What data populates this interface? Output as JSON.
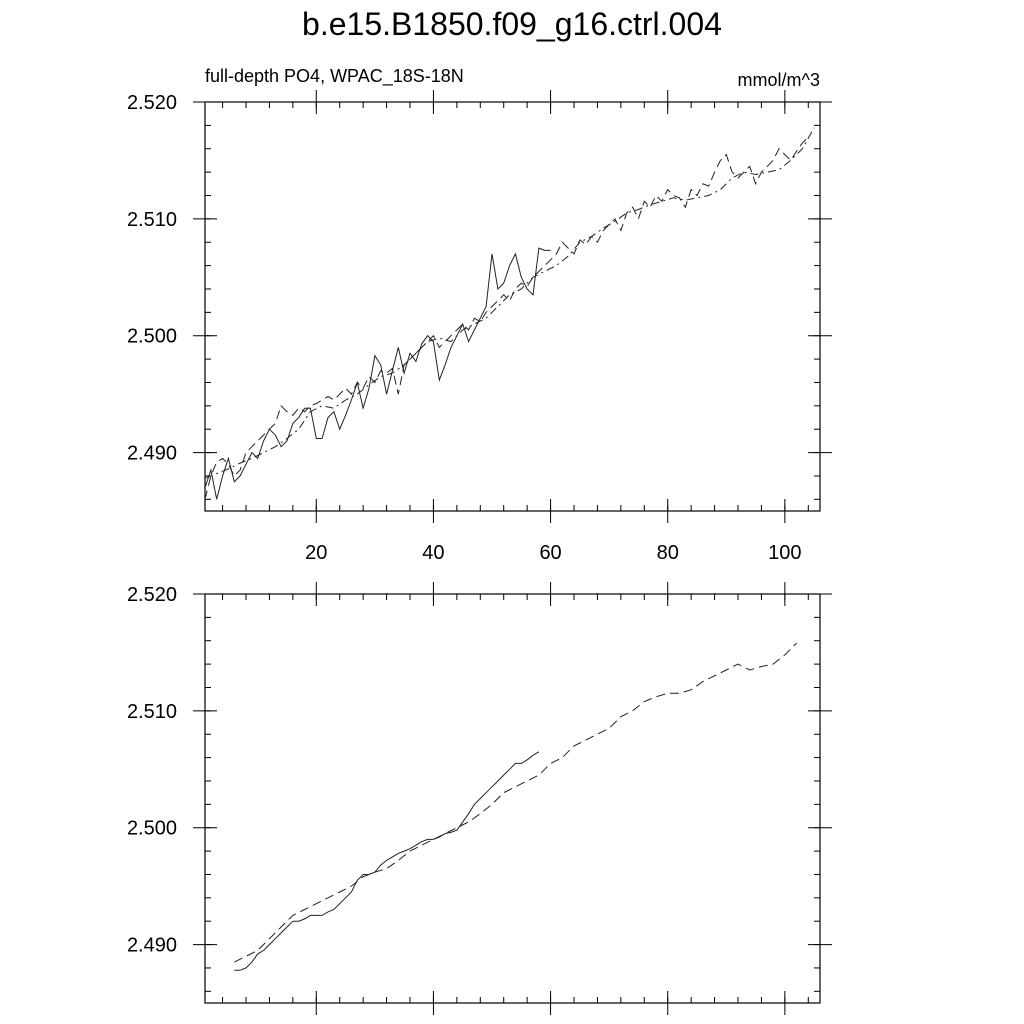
{
  "title": "b.e15.B1850.f09_g16.ctrl.004",
  "left_string": "full-depth PO4, WPAC_18S-18N",
  "right_string": "mmol/m^3",
  "chart_data": [
    {
      "type": "line",
      "title": "",
      "left_label": "full-depth PO4, WPAC_18S-18N",
      "units": "mmol/m^3",
      "xlim": [
        1,
        106
      ],
      "ylim": [
        2.485,
        2.52
      ],
      "x_ticks": [
        20,
        40,
        60,
        80,
        100
      ],
      "y_ticks": [
        2.49,
        2.5,
        2.51,
        2.52
      ],
      "y_tick_labels": [
        "2.490",
        "2.500",
        "2.510",
        "2.520"
      ],
      "x_tick_labels": [
        "20",
        "40",
        "60",
        "80",
        "100"
      ],
      "grid": false,
      "series": [
        {
          "style": "solid",
          "x": [
            1,
            2,
            3,
            4,
            5,
            6,
            7,
            8,
            9,
            10,
            11,
            12,
            13,
            14,
            15,
            16,
            17,
            18,
            19,
            20,
            21,
            22,
            23,
            24,
            25,
            26,
            27,
            28,
            29,
            30,
            31,
            32,
            33,
            34,
            35,
            36,
            37,
            38,
            39,
            40,
            41,
            42,
            43,
            44,
            45,
            46,
            47,
            48,
            49,
            50,
            51,
            52,
            53,
            54,
            55,
            56,
            57,
            58,
            59,
            60
          ],
          "values": [
            2.487,
            2.4885,
            2.486,
            2.488,
            2.4895,
            2.4875,
            2.488,
            2.489,
            2.49,
            2.4895,
            2.491,
            2.492,
            2.4915,
            2.4905,
            2.491,
            2.4925,
            2.493,
            2.4938,
            2.4938,
            2.4912,
            2.4912,
            2.493,
            2.4935,
            2.492,
            2.4932,
            2.4945,
            2.496,
            2.4938,
            2.4955,
            2.4983,
            2.4975,
            2.495,
            2.497,
            2.499,
            2.4968,
            2.4985,
            2.4978,
            2.4993,
            2.5,
            2.4995,
            2.4962,
            2.4975,
            2.499,
            2.5,
            2.501,
            2.4995,
            2.5005,
            2.5015,
            2.5025,
            2.507,
            2.504,
            2.5045,
            2.506,
            2.507,
            2.505,
            2.504,
            2.5035,
            2.5075,
            2.5073,
            2.5073
          ]
        },
        {
          "style": "dashed",
          "x": [
            1,
            2,
            3,
            4,
            5,
            6,
            7,
            8,
            9,
            10,
            11,
            12,
            13,
            14,
            15,
            16,
            17,
            18,
            19,
            20,
            21,
            22,
            23,
            24,
            25,
            26,
            27,
            28,
            29,
            30,
            31,
            32,
            33,
            34,
            35,
            36,
            37,
            38,
            39,
            40,
            41,
            42,
            43,
            44,
            45,
            46,
            47,
            48,
            49,
            50,
            51,
            52,
            53,
            54,
            55,
            56,
            57,
            58,
            59,
            60,
            61,
            62,
            63,
            64,
            65,
            66,
            67,
            68,
            69,
            70,
            71,
            72,
            73,
            74,
            75,
            76,
            77,
            78,
            79,
            80,
            81,
            82,
            83,
            84,
            85,
            86,
            87,
            88,
            89,
            90,
            91,
            92,
            93,
            94,
            95,
            96,
            97,
            98,
            99,
            100,
            101,
            102,
            103,
            104
          ],
          "values": [
            2.486,
            2.488,
            2.4892,
            2.4895,
            2.489,
            2.488,
            2.4885,
            2.49,
            2.4905,
            2.491,
            2.4915,
            2.492,
            2.4925,
            2.494,
            2.4935,
            2.4932,
            2.4938,
            2.4935,
            2.494,
            2.4942,
            2.4945,
            2.4948,
            2.4945,
            2.495,
            2.4955,
            2.495,
            2.496,
            2.4955,
            2.4965,
            2.496,
            2.497,
            2.4968,
            2.4972,
            2.495,
            2.4975,
            2.498,
            2.4985,
            2.499,
            2.4995,
            2.5,
            2.499,
            2.4995,
            2.5,
            2.5005,
            2.501,
            2.5005,
            2.5015,
            2.5012,
            2.502,
            2.5025,
            2.503,
            2.5035,
            2.503,
            2.504,
            2.5045,
            2.5042,
            2.505,
            2.5055,
            2.506,
            2.5065,
            2.507,
            2.508,
            2.5075,
            2.507,
            2.5082,
            2.5078,
            2.5085,
            2.508,
            2.509,
            2.5095,
            2.51,
            2.509,
            2.5105,
            2.511,
            2.51,
            2.5115,
            2.511,
            2.512,
            2.5115,
            2.5125,
            2.512,
            2.5118,
            2.511,
            2.5125,
            2.512,
            2.513,
            2.5128,
            2.514,
            2.515,
            2.5155,
            2.514,
            2.5135,
            2.514,
            2.5145,
            2.513,
            2.514,
            2.5145,
            2.515,
            2.516,
            2.5155,
            2.515,
            2.5158,
            2.5165,
            2.517
          ]
        },
        {
          "style": "dash-dot",
          "x": [
            1,
            3,
            5,
            7,
            9,
            11,
            13,
            15,
            17,
            19,
            21,
            23,
            25,
            27,
            29,
            31,
            33,
            35,
            37,
            39,
            41,
            43,
            45,
            47,
            49,
            51,
            53,
            55,
            57,
            59,
            61,
            63,
            65,
            67,
            69,
            71,
            73,
            75,
            77,
            79,
            81,
            83,
            85,
            87,
            89,
            91,
            93,
            95,
            97,
            99,
            101,
            103,
            105
          ],
          "values": [
            2.4878,
            2.4882,
            2.4886,
            2.4891,
            2.4895,
            2.49,
            2.4905,
            2.4912,
            2.492,
            2.4935,
            2.494,
            2.4938,
            2.4945,
            2.495,
            2.4958,
            2.4965,
            2.4968,
            2.4975,
            2.4985,
            2.4995,
            2.4998,
            2.4995,
            2.5005,
            2.501,
            2.5015,
            2.5025,
            2.5035,
            2.504,
            2.505,
            2.5055,
            2.506,
            2.5068,
            2.508,
            2.5085,
            2.5092,
            2.5098,
            2.5105,
            2.5108,
            2.5112,
            2.5115,
            2.5118,
            2.5116,
            2.5118,
            2.512,
            2.5125,
            2.5135,
            2.514,
            2.5138,
            2.514,
            2.5142,
            2.515,
            2.516,
            2.5178
          ]
        }
      ]
    },
    {
      "type": "line",
      "title": "",
      "xlim": [
        1,
        106
      ],
      "ylim": [
        2.485,
        2.52
      ],
      "x_ticks": [
        20,
        40,
        60,
        80,
        100
      ],
      "y_ticks": [
        2.49,
        2.5,
        2.51,
        2.52
      ],
      "y_tick_labels": [
        "2.490",
        "2.500",
        "2.510",
        "2.520"
      ],
      "grid": false,
      "series": [
        {
          "style": "solid",
          "x": [
            6,
            7,
            8,
            9,
            10,
            11,
            12,
            13,
            14,
            15,
            16,
            17,
            18,
            19,
            20,
            21,
            22,
            23,
            24,
            25,
            26,
            27,
            28,
            29,
            30,
            31,
            32,
            33,
            34,
            35,
            36,
            37,
            38,
            39,
            40,
            41,
            42,
            43,
            44,
            45,
            46,
            47,
            48,
            49,
            50,
            51,
            52,
            53,
            54,
            55,
            56,
            57,
            58
          ],
          "values": [
            2.4878,
            2.4878,
            2.488,
            2.4885,
            2.4892,
            2.4895,
            2.49,
            2.4905,
            2.491,
            2.4915,
            2.492,
            2.492,
            2.4922,
            2.4925,
            2.4925,
            2.4925,
            2.4928,
            2.493,
            2.4935,
            2.494,
            2.4945,
            2.4955,
            2.496,
            2.496,
            2.4962,
            2.4968,
            2.4972,
            2.4975,
            2.4978,
            2.498,
            2.4982,
            2.4985,
            2.4988,
            2.499,
            2.499,
            2.4992,
            2.4995,
            2.4996,
            2.4998,
            2.5005,
            2.5012,
            2.502,
            2.5025,
            2.503,
            2.5035,
            2.504,
            2.5045,
            2.505,
            2.5055,
            2.5055,
            2.5058,
            2.5062,
            2.5065
          ]
        },
        {
          "style": "dashed",
          "x": [
            6,
            8,
            10,
            12,
            14,
            16,
            18,
            20,
            22,
            24,
            26,
            28,
            30,
            32,
            34,
            36,
            38,
            40,
            42,
            44,
            46,
            48,
            50,
            52,
            54,
            56,
            58,
            60,
            62,
            64,
            66,
            68,
            70,
            72,
            74,
            76,
            78,
            80,
            82,
            84,
            86,
            88,
            90,
            92,
            94,
            96,
            98,
            100,
            102
          ],
          "values": [
            2.4885,
            2.489,
            2.4895,
            2.4905,
            2.4915,
            2.4925,
            2.493,
            2.4935,
            2.494,
            2.4945,
            2.495,
            2.4958,
            2.4962,
            2.4965,
            2.4972,
            2.498,
            2.4985,
            2.499,
            2.4995,
            2.5,
            2.5005,
            2.5012,
            2.502,
            2.503,
            2.5035,
            2.504,
            2.5045,
            2.5055,
            2.506,
            2.507,
            2.5075,
            2.508,
            2.5085,
            2.5095,
            2.51,
            2.5108,
            2.5112,
            2.5115,
            2.5115,
            2.5118,
            2.5125,
            2.513,
            2.5135,
            2.514,
            2.5135,
            2.5138,
            2.514,
            2.5148,
            2.5158
          ]
        }
      ]
    }
  ]
}
